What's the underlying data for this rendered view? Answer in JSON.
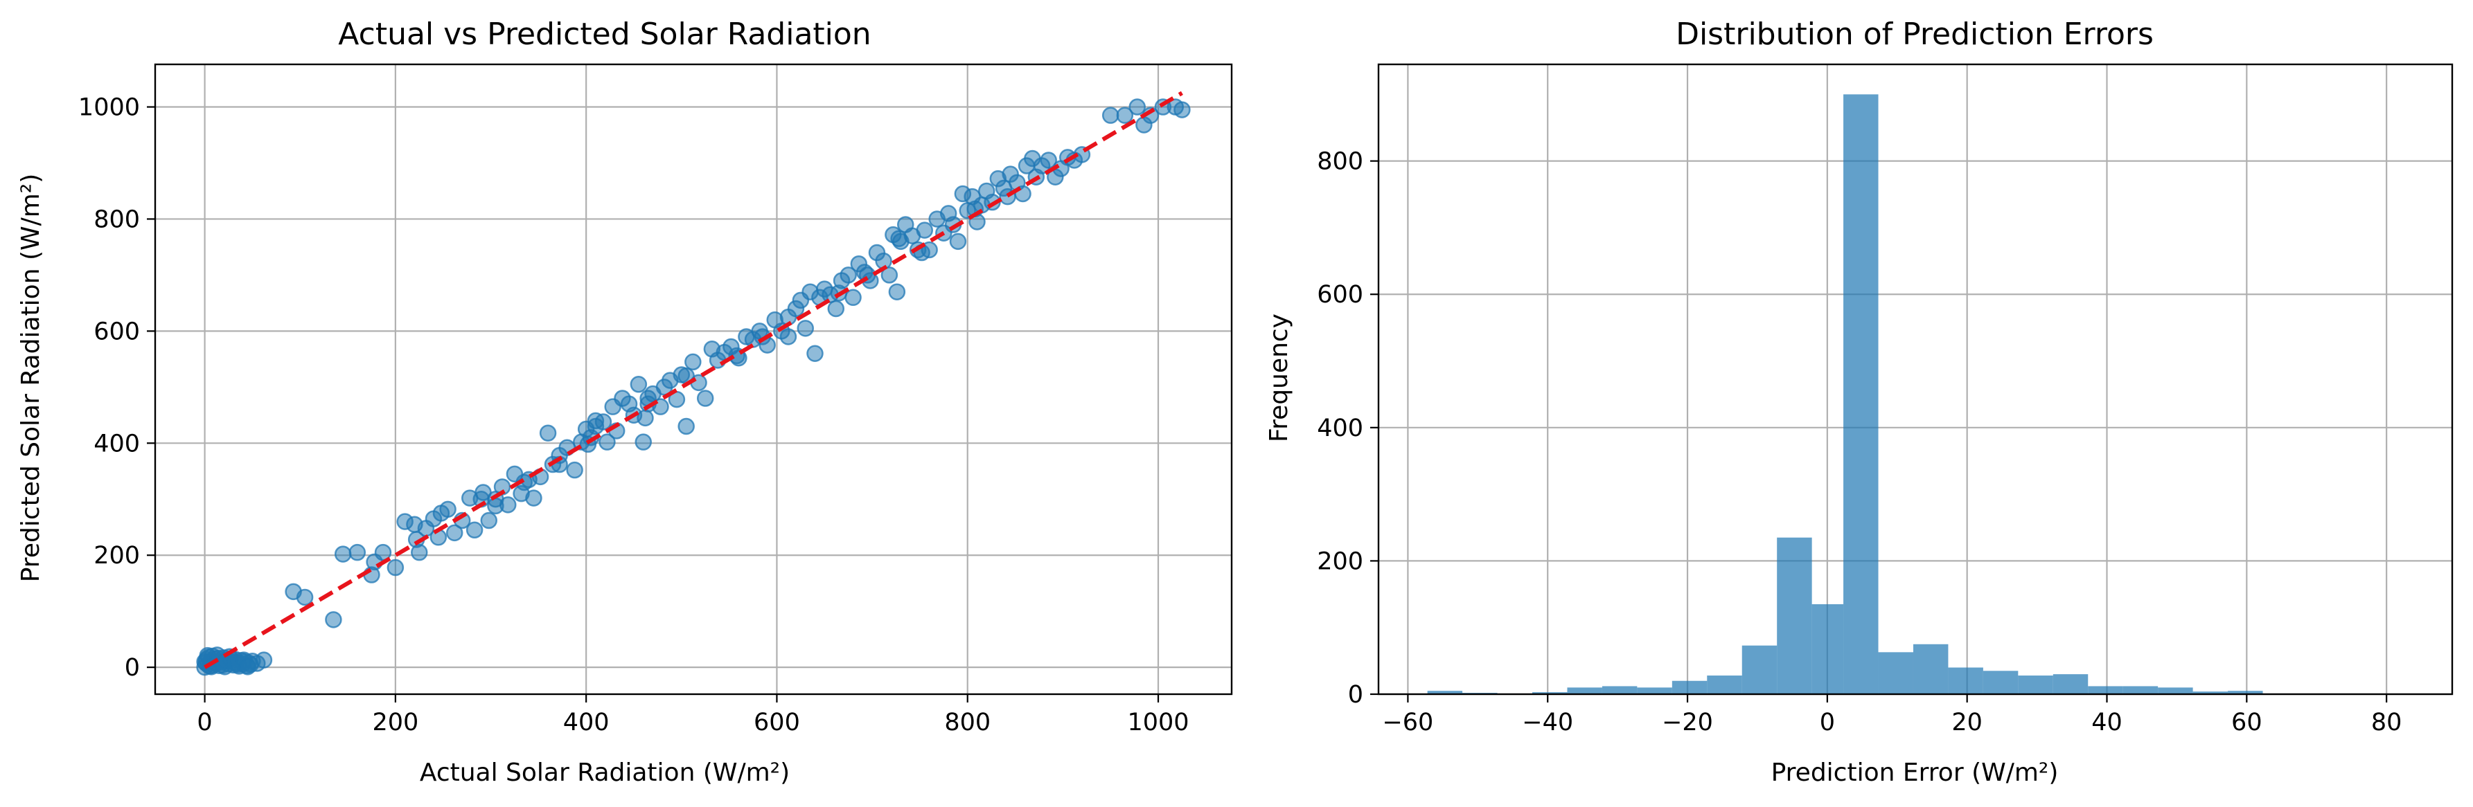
{
  "charts": [
    {
      "type": "scatter",
      "title": "Actual vs Predicted Solar Radiation",
      "xlabel": "Actual Solar Radiation (W/m²)",
      "ylabel": "Predicted Solar Radiation (W/m²)",
      "xlim": [
        -52,
        1077
      ],
      "ylim": [
        -48,
        1076
      ],
      "xticks": [
        0,
        200,
        400,
        600,
        800,
        1000
      ],
      "yticks": [
        0,
        200,
        400,
        600,
        800,
        1000
      ],
      "grid": true,
      "point_color": "#1f77b4",
      "point_alpha": 0.5,
      "reference_line": {
        "style": "dashed",
        "color": "#e8141c",
        "from": [
          0,
          0
        ],
        "to": [
          1025,
          1025
        ]
      },
      "points": [
        [
          0,
          0
        ],
        [
          1,
          8
        ],
        [
          2,
          14
        ],
        [
          3,
          5
        ],
        [
          4,
          18
        ],
        [
          5,
          2
        ],
        [
          6,
          11
        ],
        [
          8,
          20
        ],
        [
          9,
          4
        ],
        [
          10,
          15
        ],
        [
          12,
          7
        ],
        [
          13,
          22
        ],
        [
          15,
          3
        ],
        [
          16,
          12
        ],
        [
          18,
          9
        ],
        [
          20,
          17
        ],
        [
          21,
          1
        ],
        [
          23,
          13
        ],
        [
          25,
          6
        ],
        [
          26,
          19
        ],
        [
          28,
          10
        ],
        [
          30,
          4
        ],
        [
          32,
          14
        ],
        [
          34,
          8
        ],
        [
          36,
          2
        ],
        [
          38,
          12
        ],
        [
          40,
          6
        ],
        [
          42,
          10
        ],
        [
          44,
          3
        ],
        [
          46,
          8
        ],
        [
          48,
          5
        ],
        [
          50,
          11
        ],
        [
          55,
          7
        ],
        [
          62,
          13
        ],
        [
          0,
          10
        ],
        [
          3,
          21
        ],
        [
          7,
          1
        ],
        [
          11,
          9
        ],
        [
          14,
          16
        ],
        [
          19,
          4
        ],
        [
          22,
          11
        ],
        [
          27,
          15
        ],
        [
          31,
          9
        ],
        [
          35,
          5
        ],
        [
          41,
          13
        ],
        [
          45,
          1
        ],
        [
          93,
          135
        ],
        [
          105,
          125
        ],
        [
          135,
          85
        ],
        [
          145,
          202
        ],
        [
          160,
          205
        ],
        [
          175,
          165
        ],
        [
          178,
          188
        ],
        [
          187,
          205
        ],
        [
          200,
          178
        ],
        [
          210,
          260
        ],
        [
          220,
          255
        ],
        [
          225,
          205
        ],
        [
          232,
          248
        ],
        [
          240,
          265
        ],
        [
          248,
          275
        ],
        [
          255,
          282
        ],
        [
          262,
          240
        ],
        [
          270,
          262
        ],
        [
          278,
          302
        ],
        [
          283,
          245
        ],
        [
          290,
          300
        ],
        [
          298,
          262
        ],
        [
          305,
          300
        ],
        [
          312,
          322
        ],
        [
          318,
          290
        ],
        [
          325,
          345
        ],
        [
          332,
          310
        ],
        [
          340,
          335
        ],
        [
          345,
          302
        ],
        [
          352,
          340
        ],
        [
          360,
          418
        ],
        [
          365,
          362
        ],
        [
          372,
          378
        ],
        [
          380,
          392
        ],
        [
          388,
          352
        ],
        [
          395,
          402
        ],
        [
          400,
          425
        ],
        [
          405,
          410
        ],
        [
          410,
          440
        ],
        [
          418,
          438
        ],
        [
          422,
          402
        ],
        [
          428,
          465
        ],
        [
          432,
          422
        ],
        [
          438,
          480
        ],
        [
          445,
          470
        ],
        [
          450,
          450
        ],
        [
          455,
          505
        ],
        [
          460,
          402
        ],
        [
          465,
          470
        ],
        [
          470,
          488
        ],
        [
          478,
          465
        ],
        [
          482,
          500
        ],
        [
          488,
          512
        ],
        [
          495,
          478
        ],
        [
          500,
          522
        ],
        [
          505,
          430
        ],
        [
          512,
          545
        ],
        [
          518,
          508
        ],
        [
          525,
          480
        ],
        [
          532,
          568
        ],
        [
          538,
          548
        ],
        [
          545,
          562
        ],
        [
          552,
          572
        ],
        [
          560,
          552
        ],
        [
          568,
          590
        ],
        [
          575,
          585
        ],
        [
          582,
          600
        ],
        [
          590,
          575
        ],
        [
          598,
          620
        ],
        [
          605,
          600
        ],
        [
          612,
          590
        ],
        [
          620,
          640
        ],
        [
          625,
          655
        ],
        [
          630,
          605
        ],
        [
          635,
          670
        ],
        [
          640,
          560
        ],
        [
          645,
          660
        ],
        [
          650,
          675
        ],
        [
          656,
          665
        ],
        [
          662,
          640
        ],
        [
          668,
          690
        ],
        [
          675,
          700
        ],
        [
          680,
          660
        ],
        [
          686,
          720
        ],
        [
          692,
          705
        ],
        [
          698,
          690
        ],
        [
          705,
          740
        ],
        [
          712,
          725
        ],
        [
          718,
          700
        ],
        [
          722,
          772
        ],
        [
          726,
          670
        ],
        [
          730,
          760
        ],
        [
          735,
          790
        ],
        [
          742,
          770
        ],
        [
          748,
          745
        ],
        [
          755,
          780
        ],
        [
          760,
          745
        ],
        [
          768,
          800
        ],
        [
          775,
          775
        ],
        [
          780,
          810
        ],
        [
          785,
          790
        ],
        [
          790,
          760
        ],
        [
          795,
          845
        ],
        [
          800,
          815
        ],
        [
          805,
          840
        ],
        [
          810,
          795
        ],
        [
          815,
          825
        ],
        [
          820,
          850
        ],
        [
          826,
          830
        ],
        [
          832,
          872
        ],
        [
          838,
          855
        ],
        [
          845,
          880
        ],
        [
          852,
          865
        ],
        [
          858,
          845
        ],
        [
          862,
          895
        ],
        [
          868,
          908
        ],
        [
          872,
          875
        ],
        [
          878,
          895
        ],
        [
          885,
          905
        ],
        [
          892,
          875
        ],
        [
          898,
          890
        ],
        [
          905,
          910
        ],
        [
          912,
          905
        ],
        [
          920,
          915
        ],
        [
          950,
          985
        ],
        [
          965,
          985
        ],
        [
          978,
          1000
        ],
        [
          985,
          968
        ],
        [
          992,
          985
        ],
        [
          1005,
          1000
        ],
        [
          1018,
          1000
        ],
        [
          1025,
          995
        ],
        [
          305,
          288
        ],
        [
          410,
          430
        ],
        [
          465,
          480
        ],
        [
          505,
          520
        ],
        [
          585,
          590
        ],
        [
          695,
          700
        ],
        [
          728,
          765
        ],
        [
          808,
          818
        ],
        [
          842,
          840
        ],
        [
          335,
          330
        ],
        [
          372,
          362
        ],
        [
          462,
          445
        ],
        [
          558,
          556
        ],
        [
          612,
          625
        ],
        [
          665,
          668
        ],
        [
          752,
          740
        ],
        [
          222,
          228
        ],
        [
          245,
          232
        ],
        [
          292,
          312
        ],
        [
          402,
          398
        ]
      ]
    },
    {
      "type": "bar",
      "title": "Distribution of Prediction Errors",
      "xlabel": "Prediction Error (W/m²)",
      "ylabel": "Frequency",
      "xlim": [
        -64.2,
        89.4
      ],
      "ylim": [
        0,
        945
      ],
      "xticks": [
        -60,
        -40,
        -20,
        0,
        20,
        40,
        60,
        80
      ],
      "yticks": [
        0,
        200,
        400,
        600,
        800
      ],
      "grid": true,
      "bar_color": "#1f77b4",
      "bar_alpha": 0.7,
      "bin_edges": [
        -57.2,
        -52.2,
        -47.2,
        -42.2,
        -37.2,
        -32.2,
        -27.2,
        -22.2,
        -17.2,
        -12.2,
        -7.2,
        -2.2,
        2.3,
        7.3,
        12.3,
        17.3,
        22.3,
        27.3,
        32.3,
        37.3,
        42.3,
        47.3,
        52.3,
        57.3,
        62.3,
        67.3,
        72.3,
        77.3,
        82.4
      ],
      "counts": [
        5,
        2,
        1,
        3,
        10,
        12,
        10,
        20,
        28,
        73,
        235,
        135,
        900,
        63,
        75,
        40,
        35,
        28,
        30,
        12,
        12,
        10,
        4,
        5,
        1,
        1,
        1,
        0
      ]
    }
  ]
}
